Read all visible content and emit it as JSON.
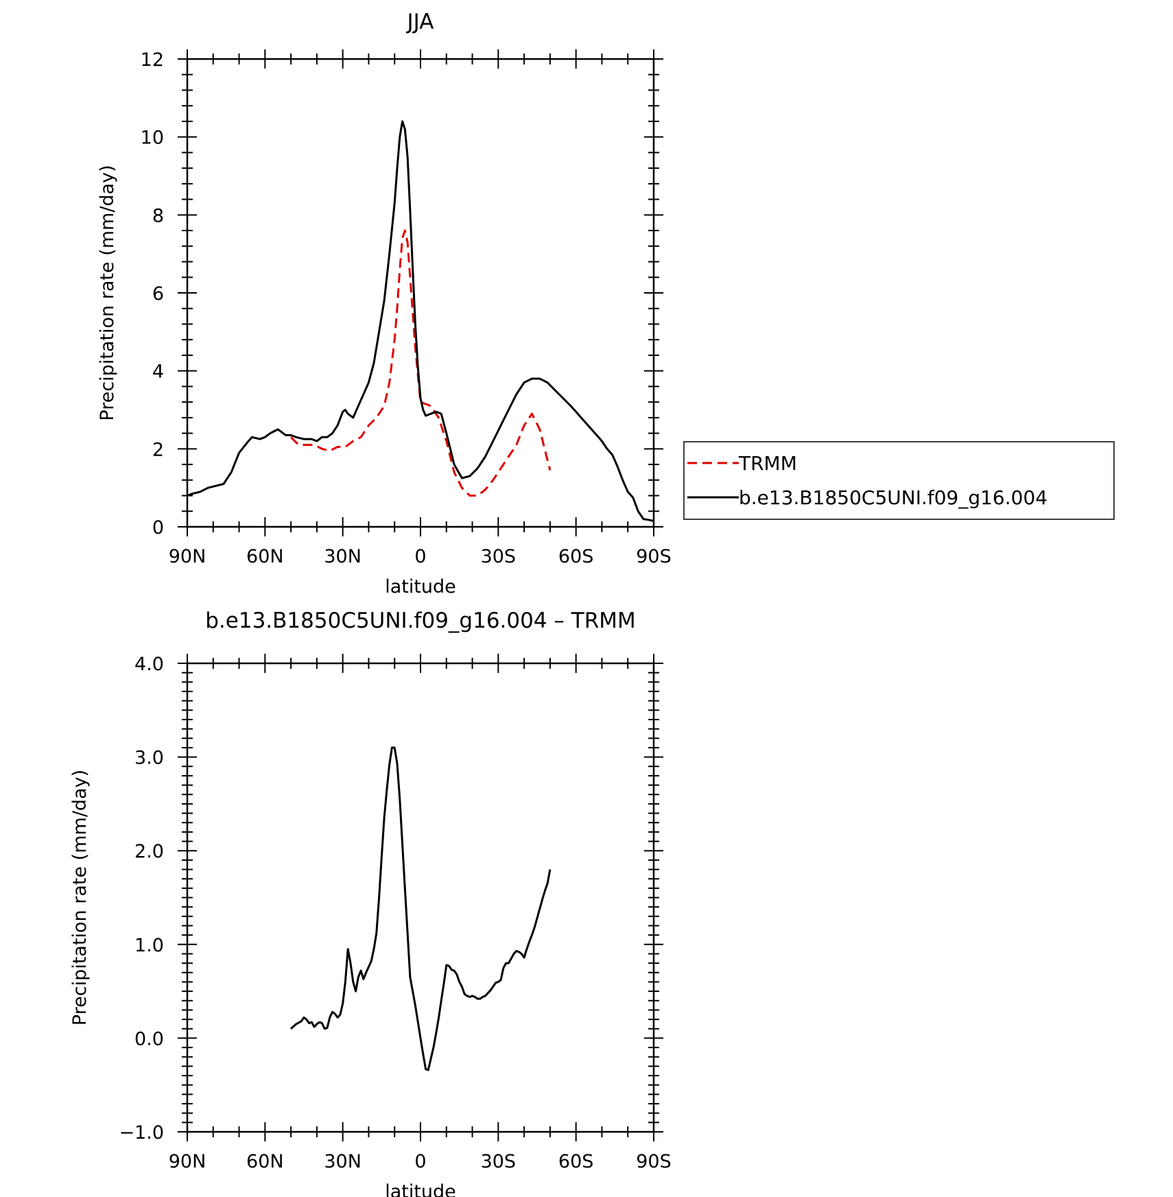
{
  "chart_data": [
    {
      "type": "line",
      "title": "JJA",
      "xlabel": "latitude",
      "ylabel": "Precipitation rate (mm/day)",
      "xlim": [
        90,
        -90
      ],
      "ylim": [
        0,
        12
      ],
      "x_ticks": [
        90,
        60,
        30,
        0,
        -30,
        -60,
        -90
      ],
      "x_tick_labels": [
        "90N",
        "60N",
        "30N",
        "0",
        "30S",
        "60S",
        "90S"
      ],
      "y_ticks": [
        0,
        2,
        4,
        6,
        8,
        10,
        12
      ],
      "y_tick_labels": [
        "0",
        "2",
        "4",
        "6",
        "8",
        "10",
        "12"
      ],
      "legend": "right",
      "series": [
        {
          "name": "TRMM",
          "color": "#e00000",
          "dash": "dashed",
          "x": [
            50,
            47,
            44,
            41,
            38,
            35,
            32,
            29,
            26,
            23,
            20,
            17,
            14,
            12,
            10,
            9,
            8,
            7,
            6,
            5,
            4,
            3,
            2,
            0,
            -2,
            -4,
            -7,
            -10,
            -13,
            -16,
            -19,
            -22,
            -25,
            -28,
            -31,
            -34,
            -37,
            -40,
            -43,
            -46,
            -50
          ],
          "y": [
            2.3,
            2.1,
            2.1,
            2.1,
            2.0,
            1.95,
            2.05,
            2.05,
            2.2,
            2.3,
            2.6,
            2.8,
            3.1,
            3.7,
            4.8,
            5.6,
            6.6,
            7.4,
            7.6,
            7.3,
            6.4,
            5.5,
            4.6,
            3.2,
            3.15,
            3.1,
            2.8,
            2.2,
            1.4,
            1.0,
            0.8,
            0.8,
            0.95,
            1.2,
            1.5,
            1.8,
            2.1,
            2.6,
            2.9,
            2.5,
            1.45
          ]
        },
        {
          "name": "b.e13.B1850C5UNI.f09_g16.004",
          "color": "#000000",
          "dash": "solid",
          "x": [
            90,
            88,
            85,
            82,
            79,
            76,
            73,
            70,
            67,
            65,
            62,
            60,
            58,
            55,
            52,
            50,
            48,
            45,
            42,
            40,
            38,
            36,
            34,
            32,
            30,
            29,
            28,
            26,
            24,
            22,
            20,
            18,
            16,
            14,
            12,
            10,
            9,
            8,
            7,
            6,
            5,
            4,
            3,
            2,
            1,
            0,
            -1,
            -2,
            -4,
            -6,
            -8,
            -10,
            -13,
            -16,
            -19,
            -22,
            -25,
            -28,
            -31,
            -34,
            -37,
            -40,
            -43,
            -46,
            -49,
            -52,
            -55,
            -58,
            -60,
            -62,
            -64,
            -66,
            -68,
            -70,
            -72,
            -74,
            -76,
            -78,
            -80,
            -82,
            -84,
            -86,
            -88,
            -90
          ],
          "y": [
            0.8,
            0.85,
            0.9,
            1.0,
            1.05,
            1.1,
            1.4,
            1.9,
            2.15,
            2.3,
            2.25,
            2.3,
            2.4,
            2.5,
            2.35,
            2.35,
            2.3,
            2.25,
            2.25,
            2.2,
            2.3,
            2.3,
            2.4,
            2.6,
            2.95,
            3.0,
            2.9,
            2.8,
            3.1,
            3.4,
            3.7,
            4.2,
            5.0,
            5.8,
            7.0,
            8.3,
            9.2,
            10.0,
            10.4,
            10.2,
            9.5,
            8.1,
            6.6,
            5.2,
            4.1,
            3.3,
            3.0,
            2.85,
            2.9,
            2.95,
            2.9,
            2.4,
            1.6,
            1.25,
            1.3,
            1.5,
            1.8,
            2.2,
            2.6,
            3.0,
            3.4,
            3.7,
            3.8,
            3.8,
            3.7,
            3.5,
            3.3,
            3.1,
            2.95,
            2.8,
            2.65,
            2.5,
            2.35,
            2.2,
            2.0,
            1.85,
            1.55,
            1.2,
            0.9,
            0.75,
            0.4,
            0.2,
            0.18,
            0.15
          ]
        }
      ]
    },
    {
      "type": "line",
      "title": "b.e13.B1850C5UNI.f09_g16.004 – TRMM",
      "xlabel": "latitude",
      "ylabel": "Precipitation rate (mm/day)",
      "xlim": [
        90,
        -90
      ],
      "ylim": [
        -1.0,
        4.0
      ],
      "x_ticks": [
        90,
        60,
        30,
        0,
        -30,
        -60,
        -90
      ],
      "x_tick_labels": [
        "90N",
        "60N",
        "30N",
        "0",
        "30S",
        "60S",
        "90S"
      ],
      "y_ticks": [
        -1,
        0,
        1,
        2,
        3,
        4
      ],
      "y_tick_labels": [
        "−1.0",
        "0.0",
        "1.0",
        "2.0",
        "3.0",
        "4.0"
      ],
      "series": [
        {
          "name": "b.e13.B1850C5UNI.f09_g16.004 – TRMM",
          "color": "#000000",
          "dash": "solid",
          "x": [
            50,
            48,
            46,
            45,
            44,
            43,
            42,
            41,
            40,
            39,
            38,
            37,
            36,
            35,
            34,
            33,
            32,
            31,
            30,
            29,
            28,
            27,
            26,
            25,
            24,
            23,
            22,
            21,
            20,
            19,
            18,
            17,
            16,
            15,
            14,
            13,
            12,
            11,
            10,
            9,
            8,
            6,
            4,
            2,
            0,
            -1,
            -2,
            -3,
            -4,
            -5,
            -6,
            -7,
            -8,
            -9,
            -10,
            -11,
            -12,
            -13,
            -14,
            -15,
            -16,
            -17,
            -18,
            -19,
            -20,
            -21,
            -22,
            -23,
            -24,
            -25,
            -26,
            -27,
            -28,
            -29,
            -30,
            -31,
            -32,
            -33,
            -34,
            -35,
            -36,
            -37,
            -38,
            -39,
            -40,
            -41,
            -42,
            -43,
            -44,
            -45,
            -46,
            -47,
            -48,
            -49,
            -50
          ],
          "y": [
            0.1,
            0.15,
            0.18,
            0.22,
            0.2,
            0.16,
            0.17,
            0.12,
            0.15,
            0.17,
            0.16,
            0.1,
            0.11,
            0.22,
            0.28,
            0.26,
            0.22,
            0.25,
            0.37,
            0.6,
            0.95,
            0.8,
            0.6,
            0.5,
            0.65,
            0.72,
            0.63,
            0.7,
            0.76,
            0.82,
            0.95,
            1.12,
            1.5,
            1.93,
            2.35,
            2.65,
            2.92,
            3.1,
            3.1,
            2.93,
            2.55,
            1.6,
            0.65,
            0.35,
            0.0,
            -0.17,
            -0.33,
            -0.34,
            -0.22,
            -0.1,
            0.05,
            0.21,
            0.4,
            0.58,
            0.78,
            0.77,
            0.73,
            0.72,
            0.68,
            0.6,
            0.55,
            0.47,
            0.45,
            0.44,
            0.45,
            0.44,
            0.42,
            0.42,
            0.44,
            0.45,
            0.48,
            0.51,
            0.55,
            0.59,
            0.6,
            0.62,
            0.75,
            0.8,
            0.8,
            0.85,
            0.9,
            0.93,
            0.92,
            0.9,
            0.86,
            0.95,
            1.03,
            1.1,
            1.18,
            1.28,
            1.38,
            1.48,
            1.57,
            1.65,
            1.8
          ]
        }
      ]
    }
  ]
}
